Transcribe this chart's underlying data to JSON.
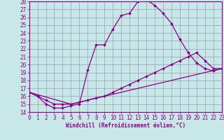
{
  "xlabel": "Windchill (Refroidissement éolien,°C)",
  "xlim": [
    0,
    23
  ],
  "ylim": [
    14,
    28
  ],
  "yticks": [
    14,
    15,
    16,
    17,
    18,
    19,
    20,
    21,
    22,
    23,
    24,
    25,
    26,
    27,
    28
  ],
  "xticks": [
    0,
    1,
    2,
    3,
    4,
    5,
    6,
    7,
    8,
    9,
    10,
    11,
    12,
    13,
    14,
    15,
    16,
    17,
    18,
    19,
    20,
    21,
    22,
    23
  ],
  "bg_color": "#c8e8e8",
  "line_color": "#880088",
  "grid_color": "#9999bb",
  "line1_x": [
    0,
    1,
    2,
    3,
    4,
    5,
    6,
    7,
    8,
    9,
    10,
    11,
    12,
    13,
    14,
    15,
    16,
    17,
    18,
    19,
    20,
    21,
    22,
    23
  ],
  "line1_y": [
    16.5,
    16.0,
    15.0,
    14.5,
    14.5,
    14.8,
    15.0,
    19.3,
    22.5,
    22.5,
    24.5,
    26.2,
    26.5,
    28.0,
    28.2,
    27.5,
    26.5,
    25.2,
    23.2,
    21.5,
    20.2,
    19.5,
    19.2,
    19.5
  ],
  "line2_x": [
    0,
    1,
    2,
    3,
    4,
    5,
    6,
    7,
    8,
    9,
    10,
    11,
    12,
    13,
    14,
    15,
    16,
    17,
    18,
    19,
    20,
    21,
    22,
    23
  ],
  "line2_y": [
    16.5,
    16.0,
    15.5,
    15.0,
    15.0,
    15.0,
    15.2,
    15.5,
    15.8,
    16.0,
    16.5,
    17.0,
    17.5,
    18.0,
    18.5,
    19.0,
    19.5,
    20.0,
    20.5,
    21.0,
    21.5,
    20.5,
    19.5,
    19.5
  ],
  "line3_x": [
    0,
    5,
    23
  ],
  "line3_y": [
    16.5,
    15.0,
    19.5
  ]
}
